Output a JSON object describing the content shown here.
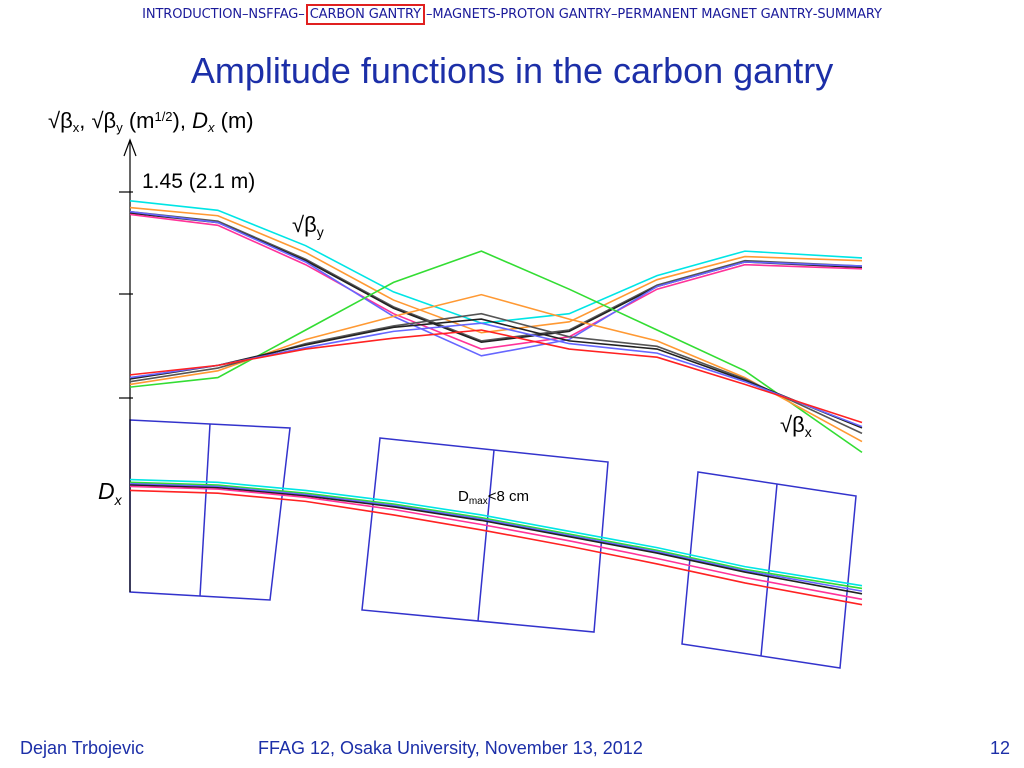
{
  "nav": {
    "items": [
      "INTRODUCTION",
      "NSFFAG",
      "CARBON GANTRY",
      "MAGNETS",
      "PROTON GANTRY",
      "PERMANENT MAGNET GANTRY",
      "SUMMARY"
    ],
    "separators": [
      " – ",
      " – ",
      " – ",
      " - ",
      " – ",
      " - "
    ],
    "active": "CARBON GANTRY",
    "active_border_color": "#e02020"
  },
  "title": "Amplitude functions in the carbon gantry",
  "ylabel": {
    "bx": "√β",
    "bx_sub": "x",
    "sep1": ", ",
    "by": "√β",
    "by_sub": "y",
    "unit_a": " (m",
    "unit_sup": "1/2",
    "unit_b": "), ",
    "dx": "D",
    "dx_sub": "x",
    "unit_c": " (m)"
  },
  "annotations": {
    "top_value": "1.45 (2.1 m)",
    "beta_y": "√β",
    "beta_y_sub": "y",
    "beta_x": "√β",
    "beta_x_sub": "x",
    "dx": "D",
    "dx_sub": "x",
    "dmax": "D",
    "dmax_sub": "max",
    "dmax_rest": "<8 cm"
  },
  "footer": {
    "author": "Dejan Trbojevic",
    "event": "FFAG 12, Osaka University, November 13, 2012",
    "page": "12"
  },
  "chart_data": {
    "type": "line",
    "title": "Amplitude functions in the carbon gantry",
    "ylabel": "√βx, √βy (m1/2), Dx (m)",
    "annotations": [
      "1.45 (2.1 m)",
      "√βy",
      "√βx",
      "Dx",
      "Dmax<8 cm"
    ],
    "x": [
      0,
      0.12,
      0.24,
      0.36,
      0.48,
      0.6,
      0.72,
      0.84,
      1.0
    ],
    "series_colors": [
      "#00e5e5",
      "#ff9933",
      "#222222",
      "#555555",
      "#ff3399",
      "#6666ff",
      "#33dd33",
      "#ff2222"
    ],
    "beta_group_top": [
      {
        "values": [
          1.45,
          1.38,
          1.12,
          0.78,
          0.55,
          0.62,
          0.9,
          1.08,
          1.03
        ]
      },
      {
        "values": [
          1.4,
          1.34,
          1.07,
          0.72,
          0.48,
          0.56,
          0.87,
          1.04,
          1.01
        ]
      },
      {
        "values": [
          1.37,
          1.3,
          1.02,
          0.67,
          0.42,
          0.5,
          0.83,
          1.01,
          0.97
        ]
      },
      {
        "values": [
          1.36,
          1.29,
          1.01,
          0.66,
          0.41,
          0.49,
          0.82,
          1.0,
          0.96
        ]
      },
      {
        "values": [
          1.35,
          1.27,
          0.98,
          0.62,
          0.36,
          0.45,
          0.8,
          0.98,
          0.95
        ]
      },
      {
        "values": [
          1.37,
          1.29,
          1.0,
          0.6,
          0.31,
          0.43,
          0.82,
          1.0,
          0.97
        ]
      }
    ],
    "beta_group_bottom": [
      {
        "values": [
          0.08,
          0.15,
          0.5,
          0.85,
          1.08,
          0.8,
          0.5,
          0.2,
          -0.4
        ]
      },
      {
        "values": [
          0.1,
          0.2,
          0.43,
          0.6,
          0.76,
          0.58,
          0.42,
          0.15,
          -0.32
        ]
      },
      {
        "values": [
          0.12,
          0.22,
          0.4,
          0.53,
          0.62,
          0.45,
          0.38,
          0.14,
          -0.26
        ]
      },
      {
        "values": [
          0.14,
          0.24,
          0.39,
          0.52,
          0.58,
          0.42,
          0.36,
          0.13,
          -0.22
        ]
      },
      {
        "values": [
          0.15,
          0.24,
          0.37,
          0.49,
          0.55,
          0.4,
          0.33,
          0.12,
          -0.21
        ]
      },
      {
        "values": [
          0.17,
          0.24,
          0.36,
          0.44,
          0.5,
          0.36,
          0.3,
          0.1,
          -0.18
        ]
      }
    ],
    "dispersion": [
      {
        "values": [
          -0.6,
          -0.62,
          -0.68,
          -0.76,
          -0.86,
          -0.98,
          -1.1,
          -1.24,
          -1.38
        ]
      },
      {
        "values": [
          -0.62,
          -0.64,
          -0.7,
          -0.78,
          -0.88,
          -1.0,
          -1.12,
          -1.26,
          -1.4
        ]
      },
      {
        "values": [
          -0.63,
          -0.65,
          -0.71,
          -0.79,
          -0.89,
          -1.01,
          -1.13,
          -1.27,
          -1.42
        ]
      },
      {
        "values": [
          -0.64,
          -0.66,
          -0.72,
          -0.8,
          -0.9,
          -1.02,
          -1.14,
          -1.28,
          -1.44
        ]
      },
      {
        "values": [
          -0.65,
          -0.67,
          -0.73,
          -0.82,
          -0.93,
          -1.05,
          -1.18,
          -1.32,
          -1.48
        ]
      },
      {
        "values": [
          -0.68,
          -0.7,
          -0.76,
          -0.86,
          -0.97,
          -1.09,
          -1.22,
          -1.36,
          -1.52
        ]
      }
    ],
    "magnet_outline_color": "#3333cc"
  }
}
